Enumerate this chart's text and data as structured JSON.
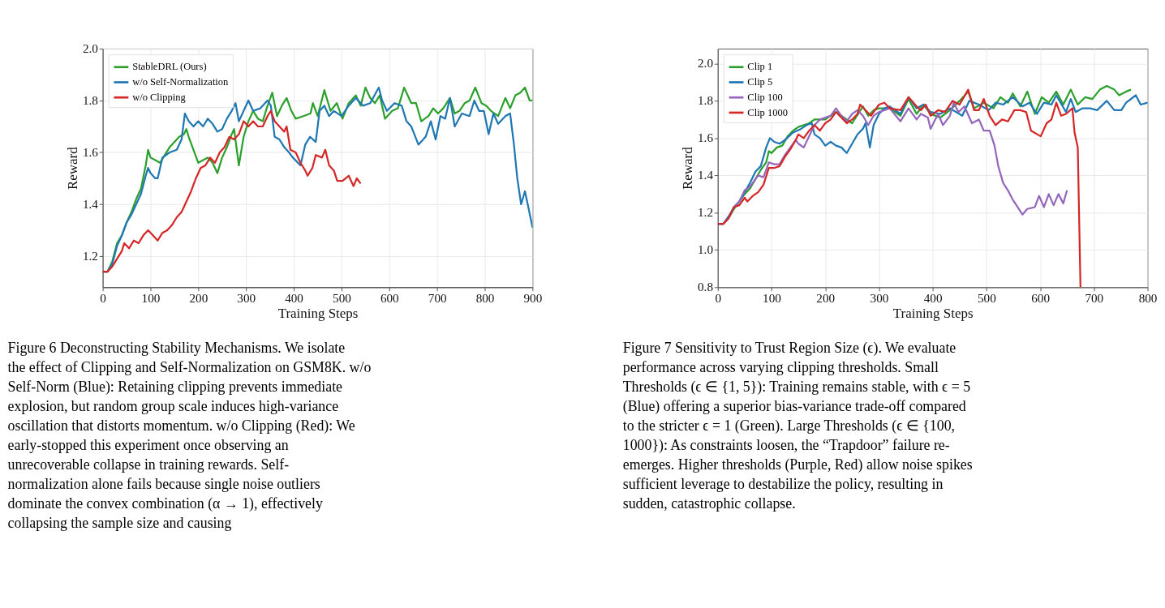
{
  "chart_data": [
    {
      "type": "line",
      "xlabel": "Training Steps",
      "ylabel": "Reward",
      "xlim": [
        0,
        900
      ],
      "xticks": [
        0,
        100,
        200,
        300,
        400,
        500,
        600,
        700,
        800,
        900
      ],
      "ylim": [
        1.08,
        2.0
      ],
      "yticks": [
        {
          "value": 1.2,
          "label": "1.2"
        },
        {
          "value": 1.4,
          "label": "1.4"
        },
        {
          "value": 1.6,
          "label": "1.6"
        },
        {
          "value": 1.8,
          "label": "1.8"
        },
        {
          "value": 2,
          "label": "2.0"
        }
      ],
      "grid": true,
      "legend": "top left",
      "series": [
        {
          "name": "StableDRL (Ours)",
          "color": "#2ca02c",
          "x": [
            0,
            10,
            20,
            30,
            40,
            50,
            60,
            70,
            80,
            90,
            95,
            100,
            110,
            120,
            130,
            140,
            150,
            160,
            170,
            175,
            180,
            190,
            200,
            210,
            220,
            230,
            240,
            250,
            260,
            270,
            275,
            285,
            295,
            305,
            315,
            325,
            335,
            345,
            355,
            365,
            375,
            385,
            395,
            404,
            420,
            435,
            440,
            450,
            464,
            477,
            490,
            502,
            515,
            530,
            540,
            550,
            560,
            570,
            580,
            591,
            606,
            618,
            631,
            646,
            656,
            667,
            682,
            692,
            702,
            713,
            727,
            737,
            747,
            758,
            768,
            780,
            793,
            803,
            813,
            828,
            843,
            853,
            864,
            874,
            884,
            894,
            900
          ],
          "values": [
            1.14,
            1.14,
            1.18,
            1.25,
            1.28,
            1.33,
            1.37,
            1.42,
            1.46,
            1.55,
            1.61,
            1.58,
            1.57,
            1.56,
            1.59,
            1.62,
            1.64,
            1.66,
            1.67,
            1.69,
            1.66,
            1.61,
            1.56,
            1.57,
            1.58,
            1.56,
            1.52,
            1.58,
            1.62,
            1.67,
            1.69,
            1.55,
            1.66,
            1.72,
            1.76,
            1.73,
            1.72,
            1.78,
            1.83,
            1.74,
            1.78,
            1.81,
            1.76,
            1.73,
            1.74,
            1.75,
            1.79,
            1.74,
            1.84,
            1.76,
            1.79,
            1.73,
            1.79,
            1.82,
            1.78,
            1.85,
            1.81,
            1.79,
            1.82,
            1.73,
            1.76,
            1.77,
            1.85,
            1.79,
            1.79,
            1.72,
            1.74,
            1.77,
            1.75,
            1.77,
            1.81,
            1.75,
            1.76,
            1.79,
            1.8,
            1.85,
            1.79,
            1.78,
            1.76,
            1.74,
            1.81,
            1.77,
            1.82,
            1.83,
            1.85,
            1.8,
            1.8
          ]
        },
        {
          "name": "w/o Self-Normalization",
          "color": "#1f77b4",
          "x": [
            0,
            10,
            20,
            30,
            40,
            50,
            60,
            70,
            80,
            90,
            95,
            100,
            110,
            115,
            125,
            140,
            155,
            165,
            172,
            180,
            190,
            200,
            210,
            220,
            230,
            240,
            250,
            260,
            270,
            278,
            285,
            295,
            305,
            315,
            330,
            345,
            352,
            360,
            370,
            380,
            390,
            398,
            414,
            424,
            434,
            446,
            454,
            464,
            474,
            484,
            500,
            515,
            530,
            545,
            560,
            578,
            585,
            595,
            611,
            626,
            636,
            646,
            661,
            676,
            687,
            697,
            707,
            717,
            727,
            737,
            752,
            768,
            778,
            788,
            798,
            808,
            818,
            828,
            843,
            853,
            861,
            868,
            876,
            884,
            891,
            900
          ],
          "values": [
            1.14,
            1.14,
            1.17,
            1.24,
            1.28,
            1.33,
            1.36,
            1.4,
            1.44,
            1.51,
            1.54,
            1.52,
            1.5,
            1.5,
            1.58,
            1.6,
            1.61,
            1.65,
            1.75,
            1.72,
            1.7,
            1.72,
            1.7,
            1.73,
            1.71,
            1.68,
            1.69,
            1.73,
            1.76,
            1.79,
            1.72,
            1.76,
            1.8,
            1.76,
            1.77,
            1.8,
            1.78,
            1.66,
            1.65,
            1.62,
            1.6,
            1.58,
            1.55,
            1.63,
            1.66,
            1.64,
            1.76,
            1.78,
            1.74,
            1.76,
            1.74,
            1.78,
            1.81,
            1.78,
            1.79,
            1.85,
            1.8,
            1.76,
            1.79,
            1.78,
            1.72,
            1.7,
            1.63,
            1.66,
            1.72,
            1.65,
            1.74,
            1.73,
            1.81,
            1.7,
            1.75,
            1.74,
            1.8,
            1.76,
            1.76,
            1.67,
            1.75,
            1.71,
            1.74,
            1.75,
            1.63,
            1.5,
            1.4,
            1.45,
            1.39,
            1.31
          ]
        },
        {
          "name": "w/o Clipping",
          "color": "#d62728",
          "x": [
            0,
            10,
            20,
            30,
            40,
            45,
            55,
            65,
            75,
            85,
            95,
            105,
            115,
            125,
            135,
            145,
            155,
            165,
            175,
            185,
            195,
            205,
            215,
            225,
            235,
            245,
            255,
            265,
            275,
            285,
            295,
            305,
            315,
            325,
            335,
            345,
            352,
            360,
            370,
            380,
            385,
            393,
            404,
            414,
            424,
            429,
            439,
            446,
            459,
            466,
            474,
            484,
            491,
            502,
            515,
            525,
            532,
            540
          ],
          "values": [
            1.14,
            1.14,
            1.16,
            1.19,
            1.22,
            1.25,
            1.23,
            1.26,
            1.25,
            1.28,
            1.3,
            1.28,
            1.26,
            1.29,
            1.3,
            1.32,
            1.35,
            1.37,
            1.41,
            1.45,
            1.5,
            1.54,
            1.55,
            1.58,
            1.56,
            1.6,
            1.62,
            1.66,
            1.65,
            1.67,
            1.72,
            1.7,
            1.72,
            1.7,
            1.7,
            1.74,
            1.76,
            1.72,
            1.7,
            1.68,
            1.7,
            1.61,
            1.6,
            1.56,
            1.53,
            1.51,
            1.54,
            1.59,
            1.58,
            1.61,
            1.55,
            1.53,
            1.49,
            1.49,
            1.51,
            1.47,
            1.5,
            1.48
          ]
        }
      ],
      "annotations": [
        "Figure 6  Deconstructing Stability Mechanisms. We isolate the effect of Clipping and Self-Normalization on GSM8K. w/o Self-Norm (Blue): Retaining clipping prevents immediate explosion, but random group scale induces high-variance oscillation that distorts momentum. w/o Clipping (Red): We early-stopped this experiment once observing an unrecoverable collapse in training rewards. Self-normalization alone fails because single noise outliers dominate the convex combination (α → 1), effectively collapsing the sample size and causing"
      ]
    },
    {
      "type": "line",
      "xlabel": "Training Steps",
      "ylabel": "Reward",
      "xlim": [
        0,
        800
      ],
      "xticks": [
        0,
        100,
        200,
        300,
        400,
        500,
        600,
        700,
        800
      ],
      "ylim": [
        0.8,
        2.08
      ],
      "yticks": [
        {
          "value": 0.8,
          "label": "0.8"
        },
        {
          "value": 1,
          "label": "1.0"
        },
        {
          "value": 1.2,
          "label": "1.2"
        },
        {
          "value": 1.4,
          "label": "1.4"
        },
        {
          "value": 1.6,
          "label": "1.6"
        },
        {
          "value": 1.8,
          "label": "1.8"
        },
        {
          "value": 2,
          "label": "2.0"
        }
      ],
      "grid": true,
      "legend": "top left",
      "series": [
        {
          "name": "Clip 1",
          "color": "#2ca02c",
          "x": [
            0,
            10,
            20,
            30,
            40,
            50,
            60,
            70,
            80,
            90,
            95,
            100,
            110,
            120,
            130,
            140,
            150,
            160,
            170,
            180,
            200,
            220,
            240,
            250,
            270,
            280,
            290,
            300,
            320,
            340,
            355,
            370,
            383,
            396,
            414,
            432,
            450,
            466,
            477,
            495,
            513,
            526,
            540,
            549,
            563,
            576,
            590,
            603,
            616,
            630,
            643,
            657,
            670,
            684,
            697,
            711,
            724,
            738,
            747,
            760,
            769
          ],
          "values": [
            1.14,
            1.14,
            1.17,
            1.22,
            1.26,
            1.3,
            1.33,
            1.38,
            1.43,
            1.47,
            1.53,
            1.52,
            1.55,
            1.56,
            1.61,
            1.64,
            1.66,
            1.67,
            1.68,
            1.7,
            1.7,
            1.74,
            1.7,
            1.68,
            1.77,
            1.72,
            1.75,
            1.76,
            1.76,
            1.72,
            1.81,
            1.73,
            1.78,
            1.73,
            1.71,
            1.75,
            1.8,
            1.85,
            1.76,
            1.79,
            1.76,
            1.82,
            1.79,
            1.84,
            1.77,
            1.85,
            1.73,
            1.82,
            1.79,
            1.85,
            1.78,
            1.86,
            1.78,
            1.82,
            1.81,
            1.86,
            1.88,
            1.86,
            1.83,
            1.85,
            1.86
          ]
        },
        {
          "name": "Clip 5",
          "color": "#1f77b4",
          "x": [
            0,
            10,
            20,
            30,
            40,
            50,
            60,
            70,
            80,
            90,
            97,
            105,
            115,
            125,
            140,
            155,
            165,
            175,
            180,
            190,
            200,
            210,
            220,
            230,
            240,
            250,
            260,
            270,
            275,
            283,
            290,
            300,
            310,
            320,
            340,
            355,
            370,
            383,
            396,
            414,
            432,
            455,
            468,
            486,
            504,
            517,
            531,
            549,
            567,
            580,
            594,
            607,
            621,
            630,
            648,
            657,
            666,
            679,
            693,
            706,
            724,
            738,
            751,
            760,
            778,
            787,
            800
          ],
          "values": [
            1.14,
            1.14,
            1.18,
            1.23,
            1.26,
            1.31,
            1.36,
            1.42,
            1.45,
            1.55,
            1.6,
            1.58,
            1.57,
            1.59,
            1.63,
            1.65,
            1.67,
            1.68,
            1.62,
            1.6,
            1.56,
            1.58,
            1.56,
            1.55,
            1.52,
            1.57,
            1.62,
            1.65,
            1.68,
            1.55,
            1.67,
            1.73,
            1.76,
            1.77,
            1.73,
            1.82,
            1.76,
            1.78,
            1.74,
            1.73,
            1.76,
            1.72,
            1.8,
            1.78,
            1.75,
            1.79,
            1.78,
            1.82,
            1.77,
            1.79,
            1.73,
            1.79,
            1.78,
            1.83,
            1.74,
            1.81,
            1.74,
            1.76,
            1.76,
            1.75,
            1.8,
            1.75,
            1.75,
            1.79,
            1.83,
            1.78,
            1.79
          ]
        },
        {
          "name": "Clip 100",
          "color": "#9467bd",
          "x": [
            0,
            10,
            20,
            30,
            40,
            50,
            60,
            70,
            75,
            85,
            95,
            105,
            115,
            125,
            135,
            145,
            150,
            160,
            170,
            180,
            190,
            200,
            210,
            220,
            230,
            240,
            250,
            260,
            270,
            280,
            290,
            300,
            320,
            340,
            355,
            370,
            378,
            391,
            396,
            410,
            419,
            432,
            439,
            448,
            459,
            473,
            486,
            495,
            506,
            515,
            522,
            531,
            540,
            549,
            558,
            567,
            576,
            590,
            598,
            607,
            616,
            625,
            634,
            643,
            650
          ],
          "values": [
            1.14,
            1.14,
            1.17,
            1.23,
            1.26,
            1.32,
            1.34,
            1.38,
            1.4,
            1.39,
            1.47,
            1.46,
            1.46,
            1.51,
            1.55,
            1.59,
            1.57,
            1.55,
            1.61,
            1.67,
            1.7,
            1.71,
            1.72,
            1.76,
            1.72,
            1.69,
            1.73,
            1.75,
            1.72,
            1.67,
            1.72,
            1.74,
            1.76,
            1.69,
            1.76,
            1.7,
            1.73,
            1.71,
            1.65,
            1.73,
            1.67,
            1.72,
            1.79,
            1.74,
            1.77,
            1.68,
            1.7,
            1.64,
            1.64,
            1.56,
            1.45,
            1.36,
            1.32,
            1.27,
            1.23,
            1.19,
            1.22,
            1.23,
            1.29,
            1.23,
            1.3,
            1.24,
            1.3,
            1.25,
            1.32
          ]
        },
        {
          "name": "Clip 1000",
          "color": "#d62728",
          "x": [
            0,
            10,
            20,
            30,
            40,
            50,
            55,
            65,
            75,
            85,
            95,
            105,
            115,
            125,
            135,
            145,
            150,
            160,
            170,
            180,
            190,
            200,
            210,
            220,
            230,
            240,
            250,
            260,
            265,
            275,
            285,
            300,
            310,
            320,
            340,
            355,
            370,
            378,
            387,
            396,
            410,
            423,
            437,
            450,
            466,
            477,
            486,
            495,
            506,
            517,
            529,
            540,
            552,
            563,
            574,
            583,
            601,
            612,
            621,
            630,
            639,
            648,
            660,
            664,
            670,
            675
          ],
          "values": [
            1.14,
            1.14,
            1.17,
            1.23,
            1.24,
            1.28,
            1.26,
            1.29,
            1.31,
            1.35,
            1.44,
            1.44,
            1.45,
            1.5,
            1.54,
            1.59,
            1.62,
            1.6,
            1.64,
            1.67,
            1.64,
            1.68,
            1.7,
            1.74,
            1.71,
            1.68,
            1.7,
            1.73,
            1.78,
            1.75,
            1.72,
            1.78,
            1.79,
            1.76,
            1.75,
            1.82,
            1.77,
            1.75,
            1.78,
            1.72,
            1.75,
            1.74,
            1.8,
            1.78,
            1.86,
            1.75,
            1.75,
            1.81,
            1.72,
            1.67,
            1.7,
            1.69,
            1.75,
            1.75,
            1.74,
            1.64,
            1.61,
            1.68,
            1.7,
            1.79,
            1.72,
            1.73,
            1.76,
            1.63,
            1.55,
            0.8
          ]
        }
      ],
      "annotations": [
        "Figure 7  Sensitivity to Trust Region Size (ϵ). We evaluate performance across varying clipping thresholds. Small Thresholds (ϵ ∈ {1, 5}): Training remains stable, with ϵ = 5 (Blue) offering a superior bias-variance trade-off compared to the stricter ϵ = 1 (Green). Large Thresholds (ϵ ∈ {100, 1000}): As constraints loosen, the “Trapdoor” failure re-emerges. Higher thresholds (Purple, Red) allow noise spikes sufficient leverage to destabilize the policy, resulting in sudden, catastrophic collapse."
      ]
    }
  ]
}
